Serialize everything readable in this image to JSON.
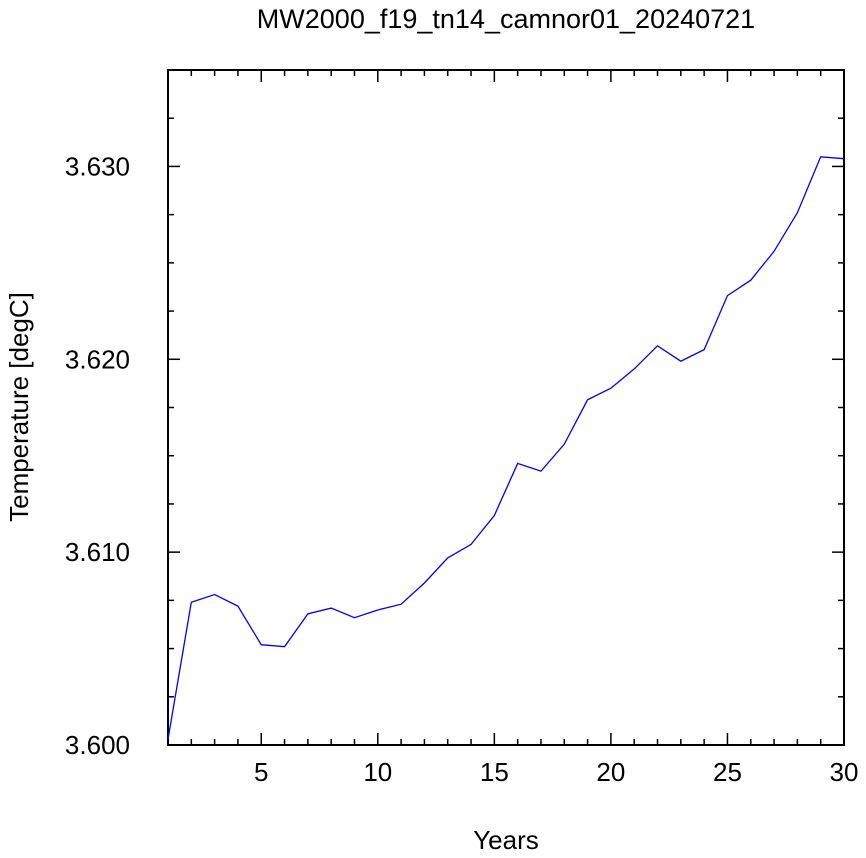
{
  "chart_data": {
    "type": "line",
    "title": "MW2000_f19_tn14_camnor01_20240721",
    "xlabel": "Years",
    "ylabel": "Temperature [degC]",
    "xlim": [
      1,
      30
    ],
    "ylim": [
      3.6,
      3.635
    ],
    "x_major_ticks": [
      5,
      10,
      15,
      20,
      25,
      30
    ],
    "x_tick_labels": [
      "5",
      "10",
      "15",
      "20",
      "25",
      "30"
    ],
    "y_major_ticks": [
      3.6,
      3.61,
      3.62,
      3.63
    ],
    "y_tick_labels": [
      "3.600",
      "3.610",
      "3.620",
      "3.630"
    ],
    "grid": false,
    "series": [
      {
        "color": "#0000ff",
        "x": [
          1,
          2,
          3,
          4,
          5,
          6,
          7,
          8,
          9,
          10,
          11,
          12,
          13,
          14,
          15,
          16,
          17,
          18,
          19,
          20,
          21,
          22,
          23,
          24,
          25,
          26,
          27,
          28,
          29,
          30
        ],
        "values": [
          3.6003,
          3.6074,
          3.6078,
          3.6072,
          3.6052,
          3.6051,
          3.6068,
          3.6071,
          3.6066,
          3.607,
          3.6073,
          3.6084,
          3.6097,
          3.6104,
          3.6119,
          3.6146,
          3.6142,
          3.6156,
          3.6179,
          3.6185,
          3.6195,
          3.6207,
          3.6199,
          3.6205,
          3.6233,
          3.6241,
          3.6256,
          3.6276,
          3.6305,
          3.6304
        ]
      }
    ]
  }
}
